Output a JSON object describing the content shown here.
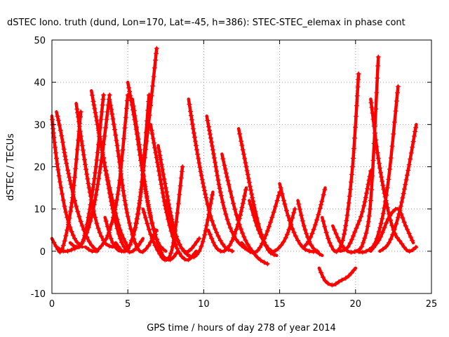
{
  "chart_data": {
    "type": "scatter",
    "title": "dSTEC Iono. truth (dund, Lon=170, Lat=-45, h=386): STEC-STEC_elemax in phase cont",
    "xlabel": "GPS time / hours of day 278 of year 2014",
    "ylabel": "dSTEC  / TECUs",
    "xlim": [
      0,
      25
    ],
    "ylim": [
      -10,
      50
    ],
    "xticks": [
      0,
      5,
      10,
      15,
      20,
      25
    ],
    "yticks": [
      -10,
      0,
      10,
      20,
      30,
      40,
      50
    ],
    "xtick_labels": [
      "0",
      "5",
      "10",
      "15",
      "20",
      "25"
    ],
    "ytick_labels": [
      "-10",
      "0",
      "10",
      "20",
      "30",
      "40",
      "50"
    ],
    "grid": true,
    "marker": "+",
    "color": "#ff0000",
    "arcs": [
      {
        "x": [
          0.0,
          0.3,
          0.6,
          1.0,
          1.4,
          1.9
        ],
        "y": [
          3,
          1,
          0,
          5,
          14,
          33
        ]
      },
      {
        "x": [
          0.0,
          0.1,
          0.3,
          0.6,
          1.0,
          1.5,
          2.0
        ],
        "y": [
          32,
          28,
          22,
          15,
          8,
          3,
          1
        ]
      },
      {
        "x": [
          0.3,
          0.6,
          1.0,
          1.5,
          2.0,
          2.5,
          3.0
        ],
        "y": [
          33,
          28,
          20,
          12,
          6,
          2,
          0
        ]
      },
      {
        "x": [
          0.3,
          0.8,
          1.4,
          2.0,
          2.6,
          3.2,
          3.8
        ],
        "y": [
          1,
          0,
          0.5,
          2,
          8,
          20,
          37
        ]
      },
      {
        "x": [
          1.2,
          1.6,
          2.0,
          2.4,
          2.9,
          3.4
        ],
        "y": [
          2,
          1,
          2,
          8,
          20,
          37
        ]
      },
      {
        "x": [
          1.6,
          2.0,
          2.5,
          3.0,
          3.5,
          4.0
        ],
        "y": [
          35,
          25,
          14,
          6,
          2,
          1
        ]
      },
      {
        "x": [
          2.2,
          2.7,
          3.2,
          3.8,
          4.4,
          5.0
        ],
        "y": [
          1,
          0,
          1,
          5,
          15,
          37
        ]
      },
      {
        "x": [
          2.6,
          3.0,
          3.5,
          4.0,
          4.5,
          5.0
        ],
        "y": [
          38,
          30,
          20,
          12,
          5,
          1
        ]
      },
      {
        "x": [
          3.0,
          3.5,
          4.0,
          4.5,
          5.0,
          5.5,
          6.0
        ],
        "y": [
          30,
          20,
          10,
          3,
          0,
          0.5,
          3
        ]
      },
      {
        "x": [
          3.5,
          4.0,
          4.6,
          5.2,
          5.8,
          6.4
        ],
        "y": [
          8,
          2,
          0,
          2,
          12,
          37
        ]
      },
      {
        "x": [
          3.8,
          4.3,
          4.8,
          5.3,
          5.8,
          6.3,
          6.9
        ],
        "y": [
          36,
          25,
          12,
          4,
          0,
          1,
          5
        ]
      },
      {
        "x": [
          4.2,
          4.7,
          5.2,
          5.7,
          6.3,
          6.9
        ],
        "y": [
          2,
          0,
          2,
          10,
          28,
          48
        ]
      },
      {
        "x": [
          5.0,
          5.5,
          6.0,
          6.5,
          7.0,
          7.5
        ],
        "y": [
          40,
          30,
          18,
          8,
          2,
          0
        ]
      },
      {
        "x": [
          5.3,
          5.8,
          6.3,
          6.8,
          7.3,
          7.8,
          8.3
        ],
        "y": [
          36,
          24,
          12,
          4,
          -1,
          -2,
          0
        ]
      },
      {
        "x": [
          6.0,
          6.5,
          7.0,
          7.5,
          8.0,
          8.6
        ],
        "y": [
          10,
          4,
          0,
          -2,
          2,
          20
        ]
      },
      {
        "x": [
          6.5,
          7.0,
          7.5,
          8.0,
          8.5,
          9.0,
          9.5
        ],
        "y": [
          30,
          20,
          10,
          3,
          -1,
          -2,
          0
        ]
      },
      {
        "x": [
          7.0,
          7.5,
          8.0,
          8.5,
          9.0,
          9.7
        ],
        "y": [
          25,
          15,
          6,
          1,
          0,
          3
        ]
      },
      {
        "x": [
          7.5,
          8.0,
          8.5,
          9.0,
          9.5,
          10.0,
          10.6
        ],
        "y": [
          12,
          5,
          1,
          -1,
          -1,
          3,
          14
        ]
      },
      {
        "x": [
          9.0,
          9.4,
          9.9,
          10.4,
          10.9,
          11.4,
          11.9
        ],
        "y": [
          36,
          27,
          17,
          9,
          4,
          1,
          0
        ]
      },
      {
        "x": [
          10.2,
          10.6,
          11.1,
          11.6,
          12.1,
          12.6,
          13.1
        ],
        "y": [
          32,
          24,
          14,
          7,
          3,
          1,
          0
        ]
      },
      {
        "x": [
          10.3,
          10.8,
          11.3,
          11.8,
          12.3,
          12.8
        ],
        "y": [
          5,
          1,
          0,
          2,
          7,
          15
        ]
      },
      {
        "x": [
          11.2,
          11.7,
          12.2,
          12.7,
          13.2,
          13.7,
          14.2
        ],
        "y": [
          23,
          15,
          8,
          3,
          0,
          -2,
          -3
        ]
      },
      {
        "x": [
          12.3,
          12.8,
          13.3,
          13.8,
          14.3,
          14.8
        ],
        "y": [
          29,
          20,
          11,
          4,
          0,
          -1
        ]
      },
      {
        "x": [
          12.5,
          13.0,
          13.5,
          14.0,
          14.5,
          15.0
        ],
        "y": [
          2,
          0,
          0,
          3,
          8,
          14
        ]
      },
      {
        "x": [
          13.0,
          13.5,
          14.0,
          14.5,
          15.0,
          15.5,
          16.0
        ],
        "y": [
          12,
          6,
          2,
          0,
          1,
          4,
          10
        ]
      },
      {
        "x": [
          15.0,
          15.5,
          16.0,
          16.5,
          17.0,
          17.5
        ],
        "y": [
          16,
          9,
          4,
          1,
          0,
          0
        ]
      },
      {
        "x": [
          16.2,
          16.6,
          17.0,
          17.4,
          17.8
        ],
        "y": [
          12,
          6,
          2,
          0,
          -1
        ]
      },
      {
        "x": [
          16.6,
          17.0,
          17.5,
          18.0
        ],
        "y": [
          1,
          3,
          8,
          15
        ]
      },
      {
        "x": [
          17.6,
          18.0,
          18.5,
          19.0,
          19.5,
          20.0
        ],
        "y": [
          -4,
          -7,
          -8,
          -7,
          -6,
          -4
        ]
      },
      {
        "x": [
          17.8,
          18.3,
          18.8,
          19.3,
          19.8,
          20.2
        ],
        "y": [
          8,
          2,
          0,
          5,
          20,
          42
        ]
      },
      {
        "x": [
          18.5,
          19.0,
          19.5,
          20.0,
          20.5,
          21.0,
          21.5
        ],
        "y": [
          6,
          2,
          0,
          0,
          2,
          12,
          46
        ]
      },
      {
        "x": [
          19.0,
          19.5,
          20.0,
          20.5,
          21.0
        ],
        "y": [
          0,
          1,
          5,
          10,
          19
        ]
      },
      {
        "x": [
          21.0,
          21.5,
          22.0,
          22.5,
          23.0,
          23.5,
          24.0
        ],
        "y": [
          36,
          22,
          12,
          5,
          2,
          0,
          1
        ]
      },
      {
        "x": [
          20.0,
          20.7,
          21.4,
          22.1,
          22.8
        ],
        "y": [
          0,
          0,
          3,
          15,
          39
        ]
      },
      {
        "x": [
          21.0,
          21.6,
          22.2,
          22.8,
          23.3,
          23.8
        ],
        "y": [
          0,
          3,
          8,
          10,
          6,
          2
        ]
      },
      {
        "x": [
          21.6,
          22.2,
          22.8,
          23.4,
          24.0
        ],
        "y": [
          0,
          2,
          8,
          18,
          30
        ]
      }
    ]
  }
}
